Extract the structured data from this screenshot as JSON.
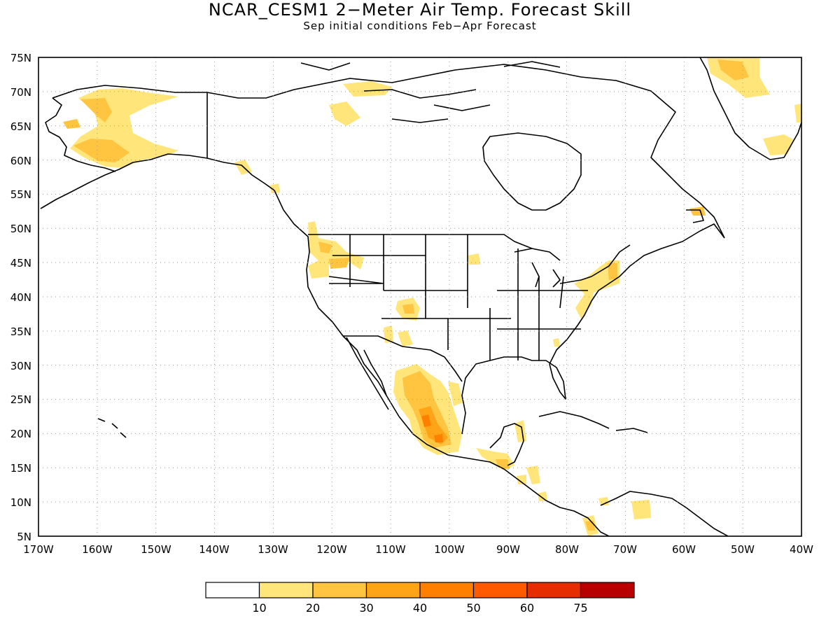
{
  "title": "NCAR_CESM1 2−Meter Air Temp. Forecast Skill",
  "subtitle": "Sep initial conditions  Feb−Apr Forecast",
  "map": {
    "lon_range": [
      -170,
      -40
    ],
    "lat_range": [
      5,
      75
    ],
    "lat_ticks": [
      "75N",
      "70N",
      "65N",
      "60N",
      "55N",
      "50N",
      "45N",
      "40N",
      "35N",
      "30N",
      "25N",
      "20N",
      "15N",
      "10N",
      "5N"
    ],
    "lon_ticks": [
      "170W",
      "160W",
      "150W",
      "140W",
      "130W",
      "120W",
      "110W",
      "100W",
      "90W",
      "80W",
      "70W",
      "60W",
      "50W",
      "40W"
    ],
    "gridlines": "dotted"
  },
  "colorbar": {
    "labels": [
      "10",
      "20",
      "30",
      "40",
      "50",
      "60",
      "75"
    ],
    "colors": [
      "#ffffff",
      "#ffe57a",
      "#ffc440",
      "#ffa417",
      "#ff8000",
      "#ff5a00",
      "#e62d00",
      "#b80000",
      "#8f0000"
    ]
  }
}
